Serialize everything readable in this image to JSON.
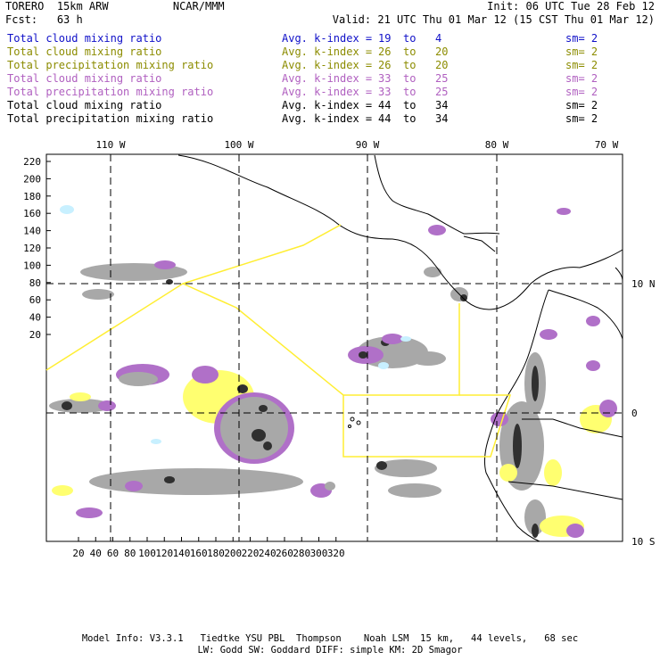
{
  "header": {
    "model_name": "TORERO",
    "resolution": "15km ARW",
    "org": "NCAR/MMM",
    "init": "Init: 06 UTC Tue 28 Feb 12",
    "fcst_label": "Fcst:",
    "fcst_value": "63 h",
    "valid": "Valid: 21 UTC Thu 01 Mar 12 (15 CST Thu 01 Mar 12)"
  },
  "legend": [
    {
      "field": "Total cloud mixing ratio",
      "index": "Avg. k-index = ",
      "from": "19",
      "to": "4",
      "sm": "sm= 2",
      "color": "#1010c8"
    },
    {
      "field": "Total cloud mixing ratio",
      "index": "Avg. k-index = ",
      "from": "26",
      "to": "20",
      "sm": "sm= 2",
      "color": "#8c8c00"
    },
    {
      "field": "Total precipitation mixing ratio",
      "index": "Avg. k-index = ",
      "from": "26",
      "to": "20",
      "sm": "sm= 2",
      "color": "#8c8c00"
    },
    {
      "field": "Total cloud mixing ratio",
      "index": "Avg. k-index = ",
      "from": "33",
      "to": "25",
      "sm": "sm= 2",
      "color": "#b060c0"
    },
    {
      "field": "Total precipitation mixing ratio",
      "index": "Avg. k-index = ",
      "from": "33",
      "to": "25",
      "sm": "sm= 2",
      "color": "#b060c0"
    },
    {
      "field": "Total cloud mixing ratio",
      "index": "Avg. k-index = ",
      "from": "44",
      "to": "34",
      "sm": "sm= 2",
      "color": "#000000"
    },
    {
      "field": "Total precipitation mixing ratio",
      "index": "Avg. k-index = ",
      "from": "44",
      "to": "34",
      "sm": "sm= 2",
      "color": "#000000"
    }
  ],
  "map": {
    "lon_labels": [
      "110 W",
      "100 W",
      "90 W",
      "80 W",
      "70 W"
    ],
    "lat_labels": [
      "10 N",
      "0",
      "10 S"
    ],
    "y_ticks": [
      "220",
      "200",
      "180",
      "160",
      "140",
      "120",
      "100",
      "80",
      "60",
      "40",
      "20"
    ],
    "x_ticks": [
      "20",
      "40",
      "60",
      "80",
      "100",
      "120",
      "140",
      "160",
      "180",
      "200",
      "220",
      "240",
      "260",
      "280",
      "300",
      "320"
    ],
    "colors": {
      "cloud_gray": "#a8a8a8",
      "dark_core": "#303030",
      "precip_purple": "#b070c8",
      "precip_yellow": "#ffff70",
      "cloud_cyan": "#c8f0ff",
      "boundary_yellow": "#ffee33"
    }
  },
  "footer": {
    "line1": "Model Info: V3.3.1   Tiedtke YSU PBL  Thompson    Noah LSM  15 km,   44 levels,   68 sec",
    "line2": "LW: Godd SW: Goddard DIFF: simple KM: 2D Smagor"
  }
}
